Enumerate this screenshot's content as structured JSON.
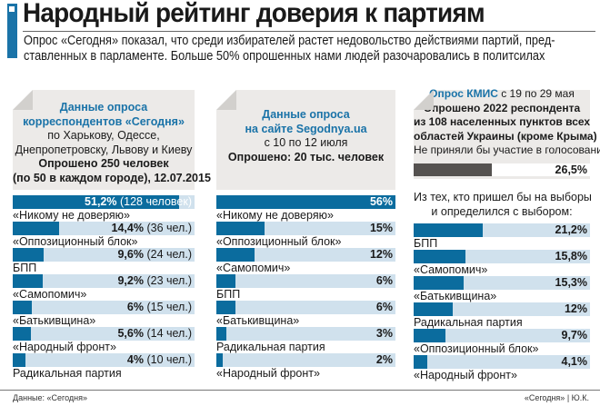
{
  "title": "Народный рейтинг доверия к партиям",
  "lead": [
    "Опрос «Сегодня» показал, что среди избирателей растет недовольство действиями партий, пред-",
    "ставленных в парламенте. Больше 50% опрошенных нами людей разочаровались в политсилах"
  ],
  "colors": {
    "accent": "#1a73a8",
    "bar": "#0b6c9e",
    "track": "#d0e1ed",
    "dark_bar": "#555250",
    "card": "#eceae8"
  },
  "chart_data": [
    {
      "type": "bar",
      "orientation": "horizontal",
      "header": {
        "blue": [
          "Данные опроса",
          "корреспондентов «Сегодня»"
        ],
        "normal": [
          "по Харькову, Одессе,",
          "Днепропетровску, Львову и Киеву"
        ],
        "bold": [
          "Опрошено 250 человек",
          "(по 50 в каждом городе), 12.07.2015"
        ]
      },
      "xlim": [
        0,
        56
      ],
      "categories": [
        "«Никому не доверяю»",
        "«Оппозиционный блок»",
        "БПП",
        "«Самопомич»",
        "«Батькивщина»",
        "«Народный фронт»",
        "Радикальная партия"
      ],
      "values": [
        51.2,
        14.4,
        9.6,
        9.2,
        6,
        5.6,
        4
      ],
      "value_labels": [
        "51,2%",
        "14,4%",
        "9,6%",
        "9,2%",
        "6%",
        "5,6%",
        "4%"
      ],
      "counts": [
        "(128 человек)",
        "(36 чел.)",
        "(24 чел.)",
        "(23 чел.)",
        "(15 чел.)",
        "(14 чел.)",
        "(10 чел.)"
      ]
    },
    {
      "type": "bar",
      "orientation": "horizontal",
      "header": {
        "blue": [
          "Данные опроса",
          "на сайте Segodnya.ua"
        ],
        "normal": [
          "с 10 по 12 июля"
        ],
        "bold": [
          "Опрошено: 20 тыс. человек"
        ]
      },
      "xlim": [
        0,
        56
      ],
      "categories": [
        "«Никому не доверяю»",
        "«Оппозиционный блок»",
        "«Самопомич»",
        "БПП",
        "«Батькивщина»",
        "Радикальная партия",
        "«Народный фронт»"
      ],
      "values": [
        56,
        15,
        12,
        6,
        6,
        3,
        2
      ],
      "value_labels": [
        "56%",
        "15%",
        "12%",
        "6%",
        "6%",
        "3%",
        "2%"
      ]
    },
    {
      "type": "bar",
      "orientation": "horizontal",
      "header": {
        "blue_inline": "Опрос КМИС",
        "normal_inline": " с 19 по 29 мая",
        "bold": [
          "Опрошено 2022 респондента",
          "из 108 населенных пунктов всех",
          "областей Украины (кроме Крыма)"
        ],
        "normal": [
          "Не приняли бы участие в голосовании"
        ]
      },
      "abstain": {
        "value": 26.5,
        "label": "26,5%",
        "xlim": [
          0,
          60
        ]
      },
      "subtitle": [
        "Из тех, кто пришел бы на выборы",
        "и определился с выбором:"
      ],
      "xlim": [
        0,
        54
      ],
      "categories": [
        "БПП",
        "«Самопомич»",
        "«Батькивщина»",
        "Радикальная партия",
        "«Оппозиционный блок»",
        "«Народный фронт»"
      ],
      "values": [
        21.2,
        15.8,
        15.3,
        12,
        9.7,
        4.1
      ],
      "value_labels": [
        "21,2%",
        "15,8%",
        "15,3%",
        "12%",
        "9,7%",
        "4,1%"
      ]
    }
  ],
  "footer": {
    "source": "Данные: «Сегодня»",
    "credit": "«Сегодня» | Ю.К."
  }
}
